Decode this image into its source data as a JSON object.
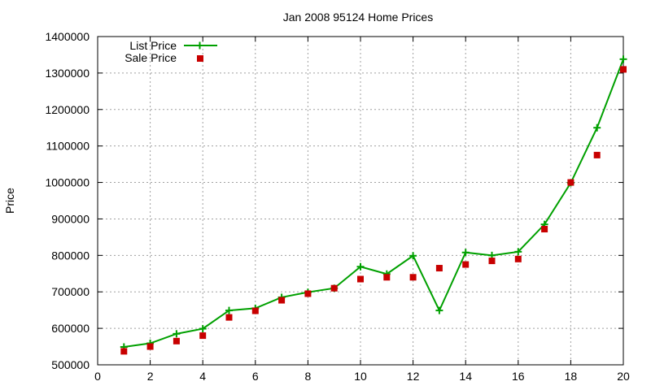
{
  "chart_data": {
    "type": "line",
    "title": "Jan 2008 95124 Home Prices",
    "xlabel": "",
    "ylabel": "Price",
    "xlim": [
      0,
      20
    ],
    "ylim": [
      500000,
      1400000
    ],
    "x_ticks": [
      0,
      2,
      4,
      6,
      8,
      10,
      12,
      14,
      16,
      18,
      20
    ],
    "y_ticks": [
      500000,
      600000,
      700000,
      800000,
      900000,
      1000000,
      1100000,
      1200000,
      1300000,
      1400000
    ],
    "grid": true,
    "legend_position": "top-left",
    "x": [
      1,
      2,
      3,
      4,
      5,
      6,
      7,
      8,
      9,
      10,
      11,
      12,
      13,
      14,
      15,
      16,
      17,
      18,
      19,
      20
    ],
    "series": [
      {
        "name": "List Price",
        "style": "line-with-plus-markers",
        "color": "#00a000",
        "values": [
          549000,
          559000,
          585000,
          599000,
          649000,
          655000,
          685000,
          699000,
          710000,
          769000,
          749000,
          799000,
          649000,
          808000,
          800000,
          810000,
          885000,
          999000,
          1150000,
          1338000
        ]
      },
      {
        "name": "Sale Price",
        "style": "square-markers",
        "color": "#c80000",
        "values": [
          537000,
          550000,
          565000,
          580000,
          630000,
          648000,
          677000,
          695000,
          710000,
          735000,
          740000,
          740000,
          765000,
          775000,
          785000,
          790000,
          872000,
          1000000,
          1075000,
          1310000
        ]
      }
    ]
  }
}
